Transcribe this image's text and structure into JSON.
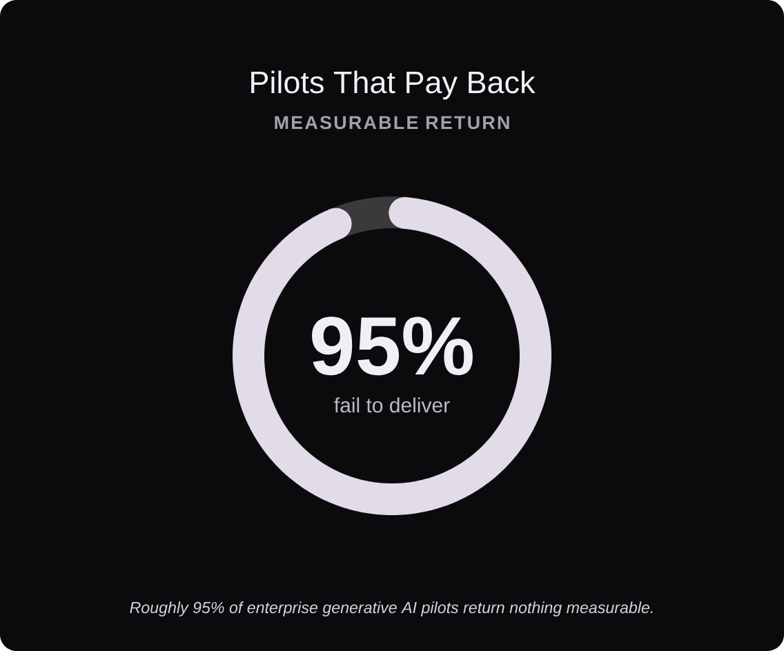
{
  "chart_data": {
    "type": "donut",
    "title": "Pilots That Pay Back",
    "subtitle": "MEASURABLE RETURN",
    "categories": [
      "fail to deliver",
      null
    ],
    "values": [
      95,
      5
    ],
    "colors": [
      "#e2dbe8",
      "#3a3a3c"
    ],
    "value_labels": [
      "95%",
      null
    ],
    "annotations": [
      "Roughly 95% of enterprise generative AI pilots return nothing measurable."
    ]
  }
}
